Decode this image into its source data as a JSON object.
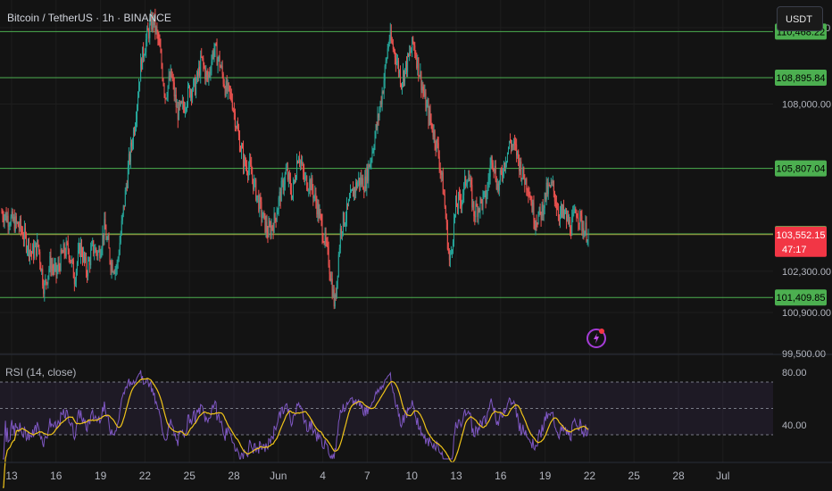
{
  "header": {
    "ticker": "Bitcoin / TetherUS · 1h · BINANCE",
    "currency_button": "USDT"
  },
  "rsi_panel": {
    "legend": "RSI (14, close)",
    "levels": [
      80,
      40
    ],
    "level_labels": [
      "80.00",
      "40.00"
    ],
    "band_color": "#7e57c2",
    "line_color": "#7e57c2",
    "ma_color": "#f0c419"
  },
  "colors": {
    "up": "#26a69a",
    "down": "#ef5350",
    "level_line": "#4caf50",
    "current_price": "#f23645",
    "background": "#131313"
  },
  "chart_data": {
    "type": "candlestick",
    "symbol": "BTCUSDT",
    "exchange": "BINANCE",
    "interval": "1h",
    "ylim": [
      99500,
      111300
    ],
    "y_ticks": [
      {
        "value": 99500,
        "label": "99,500.00"
      },
      {
        "value": 100900,
        "label": "100,900.00"
      },
      {
        "value": 102300,
        "label": "102,300.00"
      },
      {
        "value": 108000,
        "label": "108,000.00"
      },
      {
        "value": 110600,
        "label": "110,600.00"
      }
    ],
    "x_ticks": [
      "13",
      "16",
      "19",
      "22",
      "25",
      "28",
      "Jun",
      "4",
      "7",
      "10",
      "13",
      "16",
      "19",
      "22",
      "25",
      "28",
      "Jul"
    ],
    "horizontal_levels": [
      {
        "value": 110468.22,
        "label": "110,468.22"
      },
      {
        "value": 108895.84,
        "label": "108,895.84"
      },
      {
        "value": 105807.04,
        "label": "105,807.04"
      },
      {
        "value": 103573.48,
        "label": "103,573.48"
      },
      {
        "value": 101409.85,
        "label": "101,409.85"
      }
    ],
    "current_price": {
      "value": 103552.15,
      "label": "103,552.15",
      "countdown": "47:17"
    },
    "close_path": [
      [
        0,
        104300
      ],
      [
        3,
        103800
      ],
      [
        5,
        102900
      ],
      [
        6,
        103200
      ],
      [
        7,
        101700
      ],
      [
        8,
        102600
      ],
      [
        9,
        102200
      ],
      [
        10,
        102900
      ],
      [
        11,
        103100
      ],
      [
        12,
        102100
      ],
      [
        13,
        103200
      ],
      [
        14,
        102300
      ],
      [
        15,
        103100
      ],
      [
        16,
        102900
      ],
      [
        17,
        103800
      ],
      [
        18,
        102600
      ],
      [
        19,
        102400
      ],
      [
        20,
        104200
      ],
      [
        21,
        106000
      ],
      [
        22,
        107400
      ],
      [
        23,
        109400
      ],
      [
        24,
        110300
      ],
      [
        25,
        110900
      ],
      [
        26,
        110000
      ],
      [
        27,
        108300
      ],
      [
        28,
        109000
      ],
      [
        29,
        107700
      ],
      [
        30,
        107900
      ],
      [
        31,
        108500
      ],
      [
        32,
        108600
      ],
      [
        33,
        109500
      ],
      [
        34,
        108800
      ],
      [
        35,
        109900
      ],
      [
        36,
        109400
      ],
      [
        37,
        108500
      ],
      [
        38,
        108200
      ],
      [
        39,
        107000
      ],
      [
        40,
        106000
      ],
      [
        41,
        105800
      ],
      [
        42,
        105000
      ],
      [
        43,
        104200
      ],
      [
        44,
        103600
      ],
      [
        45,
        104000
      ],
      [
        46,
        104900
      ],
      [
        47,
        105700
      ],
      [
        48,
        104900
      ],
      [
        49,
        106400
      ],
      [
        50,
        105400
      ],
      [
        51,
        105300
      ],
      [
        52,
        104600
      ],
      [
        53,
        103700
      ],
      [
        54,
        102700
      ],
      [
        55,
        101100
      ],
      [
        56,
        103800
      ],
      [
        57,
        104300
      ],
      [
        58,
        105000
      ],
      [
        59,
        105400
      ],
      [
        60,
        105300
      ],
      [
        61,
        106200
      ],
      [
        62,
        107300
      ],
      [
        63,
        108600
      ],
      [
        64,
        110300
      ],
      [
        65,
        109700
      ],
      [
        66,
        108800
      ],
      [
        67,
        109400
      ],
      [
        68,
        110100
      ],
      [
        69,
        109100
      ],
      [
        70,
        108000
      ],
      [
        71,
        107300
      ],
      [
        72,
        106500
      ],
      [
        73,
        105000
      ],
      [
        74,
        102500
      ],
      [
        75,
        104500
      ],
      [
        76,
        104800
      ],
      [
        77,
        105700
      ],
      [
        78,
        104300
      ],
      [
        79,
        104600
      ],
      [
        80,
        104800
      ],
      [
        81,
        106300
      ],
      [
        82,
        105100
      ],
      [
        83,
        106000
      ],
      [
        84,
        106700
      ],
      [
        85,
        106400
      ],
      [
        86,
        105600
      ],
      [
        87,
        105200
      ],
      [
        88,
        104100
      ],
      [
        89,
        104200
      ],
      [
        90,
        105000
      ],
      [
        91,
        105200
      ],
      [
        92,
        104300
      ],
      [
        93,
        104200
      ],
      [
        94,
        103800
      ],
      [
        95,
        104400
      ],
      [
        96,
        103800
      ],
      [
        97,
        103552.15
      ]
    ]
  }
}
